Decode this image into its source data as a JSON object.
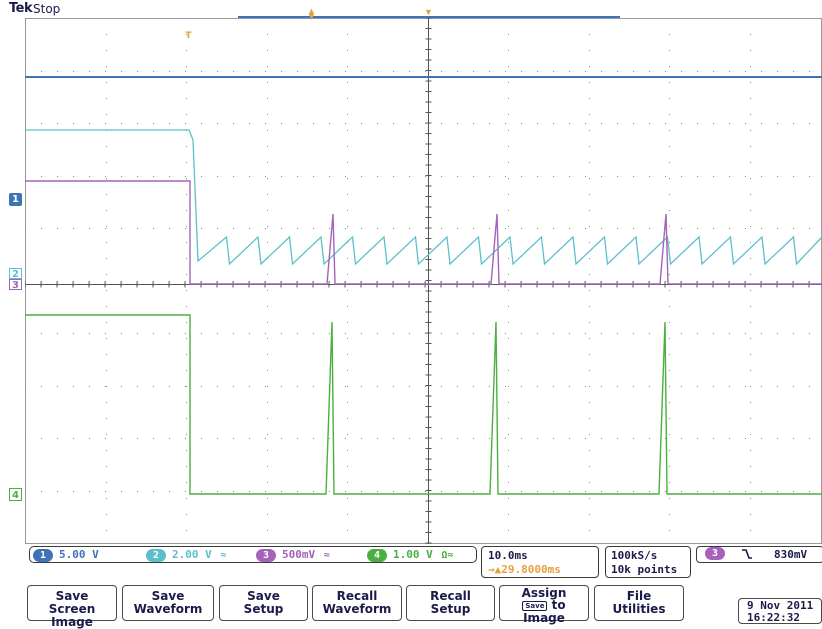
{
  "header": {
    "brand": "Tek",
    "status": "Stop"
  },
  "colors": {
    "ch1": "#3f73b8",
    "ch2": "#5cc0cc",
    "ch3": "#a463b8",
    "ch4": "#4caf42",
    "trigger": "#e6a13e",
    "text": "#1b1b4a",
    "grid": "#8a8a8a"
  },
  "icons": {
    "trigger_position": "trigger-t-icon",
    "ch2_coupling": "bandwidth-limit-icon",
    "ch3_coupling": "bandwidth-limit-icon",
    "ch4_coupling": "ohm-icon",
    "trigger_slope": "falling-edge-icon"
  },
  "markers": {
    "ch1": "1",
    "ch2": "2",
    "ch3": "3",
    "ch4": "4",
    "trigger_top": "T"
  },
  "channels": [
    {
      "id": "1",
      "scale": "5.00 V"
    },
    {
      "id": "2",
      "scale": "2.00 V",
      "suffix": "≈"
    },
    {
      "id": "3",
      "scale": "500mV",
      "suffix": "≈"
    },
    {
      "id": "4",
      "scale": "1.00 V",
      "suffix": "Ω≈"
    }
  ],
  "timebase": {
    "scale": "10.0ms",
    "delay": "→▲29.8000ms"
  },
  "acquisition": {
    "rate": "100kS/s",
    "points": "10k points"
  },
  "trigger": {
    "source": "3",
    "slope": "╲",
    "level": "830mV"
  },
  "buttons": {
    "save_screen": [
      "Save",
      "Screen Image"
    ],
    "save_waveform": [
      "Save",
      "Waveform"
    ],
    "save_setup": [
      "Save",
      "Setup"
    ],
    "recall_waveform": [
      "Recall",
      "Waveform"
    ],
    "recall_setup": [
      "Recall",
      "Setup"
    ],
    "assign": [
      "Assign",
      "Save",
      "to",
      "Image"
    ],
    "file_utilities": [
      "File",
      "Utilities"
    ]
  },
  "datetime": {
    "date": "9 Nov 2011",
    "time": "16:22:32"
  }
}
